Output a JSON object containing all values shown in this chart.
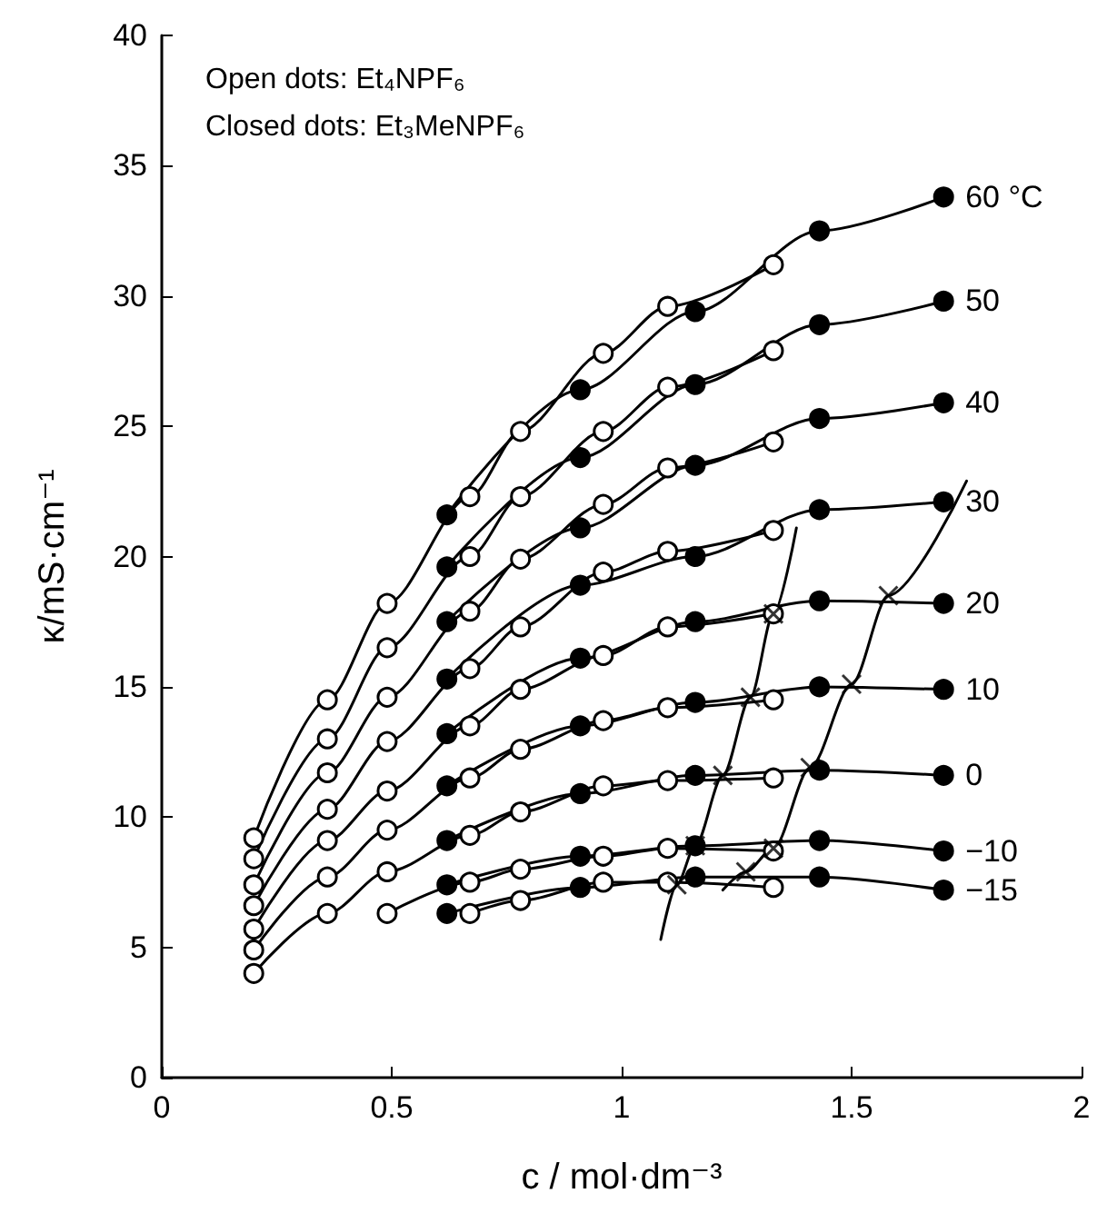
{
  "chart_data": {
    "type": "line",
    "xlabel": "c / mol·dm⁻³",
    "ylabel": "κ/mS·cm⁻¹",
    "xlim": [
      0,
      2
    ],
    "xticks": [
      0,
      0.5,
      1,
      1.5,
      2
    ],
    "ylim": [
      0,
      40
    ],
    "yticks": [
      0,
      5,
      10,
      15,
      20,
      25,
      30,
      35,
      40
    ],
    "marker": "circle",
    "line_style": "solid",
    "series": [
      {
        "color": "#000000",
        "x": [
          0.2,
          0.36,
          0.49,
          0.67,
          0.78,
          0.96,
          1.1,
          1.33
        ],
        "values": [
          9.2,
          14.5,
          18.2,
          22.3,
          24.8,
          27.8,
          29.6,
          31.2
        ]
      },
      {
        "name": "60 °C",
        "color": "#000000",
        "x": [
          0.62,
          0.91,
          1.16,
          1.43,
          1.7
        ],
        "values": [
          21.6,
          26.4,
          29.4,
          32.5,
          33.8
        ]
      },
      {
        "color": "#000000",
        "x": [
          0.2,
          0.36,
          0.49,
          0.67,
          0.78,
          0.96,
          1.1,
          1.33
        ],
        "values": [
          8.4,
          13.0,
          16.5,
          20.0,
          22.3,
          24.8,
          26.5,
          27.9
        ]
      },
      {
        "name": "50",
        "color": "#000000",
        "x": [
          0.62,
          0.91,
          1.16,
          1.43,
          1.7
        ],
        "values": [
          19.6,
          23.8,
          26.6,
          28.9,
          29.8
        ]
      },
      {
        "color": "#000000",
        "x": [
          0.2,
          0.36,
          0.49,
          0.67,
          0.78,
          0.96,
          1.1,
          1.33
        ],
        "values": [
          7.4,
          11.7,
          14.6,
          17.9,
          19.9,
          22.0,
          23.4,
          24.4
        ]
      },
      {
        "name": "40",
        "color": "#000000",
        "x": [
          0.62,
          0.91,
          1.16,
          1.43,
          1.7
        ],
        "values": [
          17.5,
          21.1,
          23.5,
          25.3,
          25.9
        ]
      },
      {
        "color": "#000000",
        "x": [
          0.2,
          0.36,
          0.49,
          0.67,
          0.78,
          0.96,
          1.1,
          1.33
        ],
        "values": [
          6.6,
          10.3,
          12.9,
          15.7,
          17.3,
          19.4,
          20.2,
          21.0
        ]
      },
      {
        "name": "30",
        "color": "#000000",
        "x": [
          0.62,
          0.91,
          1.16,
          1.43,
          1.7
        ],
        "values": [
          15.3,
          18.9,
          20.0,
          21.8,
          22.1
        ]
      },
      {
        "color": "#000000",
        "x": [
          0.2,
          0.36,
          0.49,
          0.67,
          0.78,
          0.96,
          1.1,
          1.33
        ],
        "values": [
          5.7,
          9.1,
          11.0,
          13.5,
          14.9,
          16.2,
          17.3,
          17.8
        ]
      },
      {
        "name": "20",
        "color": "#000000",
        "x": [
          0.62,
          0.91,
          1.16,
          1.43,
          1.7
        ],
        "values": [
          13.2,
          16.1,
          17.5,
          18.3,
          18.2
        ]
      },
      {
        "color": "#000000",
        "x": [
          0.2,
          0.36,
          0.49,
          0.67,
          0.78,
          0.96,
          1.1,
          1.33
        ],
        "values": [
          4.9,
          7.7,
          9.5,
          11.5,
          12.6,
          13.7,
          14.2,
          14.5
        ]
      },
      {
        "name": "10",
        "color": "#000000",
        "x": [
          0.62,
          0.91,
          1.16,
          1.43,
          1.7
        ],
        "values": [
          11.2,
          13.5,
          14.4,
          15.0,
          14.9
        ]
      },
      {
        "color": "#000000",
        "x": [
          0.2,
          0.36,
          0.49,
          0.67,
          0.78,
          0.96,
          1.1,
          1.33
        ],
        "values": [
          4.0,
          6.3,
          7.9,
          9.3,
          10.2,
          11.2,
          11.4,
          11.5
        ]
      },
      {
        "name": "0",
        "color": "#000000",
        "x": [
          0.62,
          0.91,
          1.16,
          1.43,
          1.7
        ],
        "values": [
          9.1,
          10.9,
          11.6,
          11.8,
          11.6
        ]
      },
      {
        "color": "#000000",
        "x": [
          0.49,
          0.67,
          0.78,
          0.96,
          1.1,
          1.33
        ],
        "values": [
          6.3,
          7.5,
          8.0,
          8.5,
          8.8,
          8.7
        ]
      },
      {
        "name": "−10",
        "color": "#000000",
        "x": [
          0.62,
          0.91,
          1.16,
          1.43,
          1.7
        ],
        "values": [
          7.4,
          8.5,
          8.9,
          9.1,
          8.7
        ]
      },
      {
        "color": "#000000",
        "x": [
          0.67,
          0.78,
          0.96,
          1.1,
          1.33
        ],
        "values": [
          6.3,
          6.8,
          7.5,
          7.5,
          7.3
        ]
      },
      {
        "name": "−15",
        "color": "#000000",
        "x": [
          0.62,
          0.91,
          1.16,
          1.43,
          1.7
        ],
        "values": [
          6.3,
          7.3,
          7.7,
          7.7,
          7.2
        ]
      },
      {
        "color": "#000000",
        "marker": "none",
        "x": [
          1.085,
          1.12,
          1.16,
          1.22,
          1.28,
          1.33,
          1.38
        ],
        "values": [
          5.3,
          7.4,
          8.9,
          11.6,
          14.6,
          17.8,
          21.1
        ]
      },
      {
        "color": "#000000",
        "marker": "none",
        "x": [
          1.22,
          1.27,
          1.33,
          1.41,
          1.5,
          1.58,
          1.75
        ],
        "values": [
          7.2,
          7.9,
          8.8,
          11.9,
          15.1,
          18.5,
          22.9
        ]
      },
      {
        "type": "scatter",
        "color": "#000000",
        "marker": "cross",
        "x": [
          1.12,
          1.16,
          1.22,
          1.28,
          1.33,
          1.27,
          1.33,
          1.41,
          1.5,
          1.58
        ],
        "values": [
          7.4,
          8.9,
          11.6,
          14.6,
          17.8,
          7.9,
          8.8,
          11.9,
          15.1,
          18.5
        ]
      }
    ],
    "annotations": [
      "Open dots: Et₄NPF₆",
      "Closed dots: Et₃MeNPF₆"
    ]
  }
}
